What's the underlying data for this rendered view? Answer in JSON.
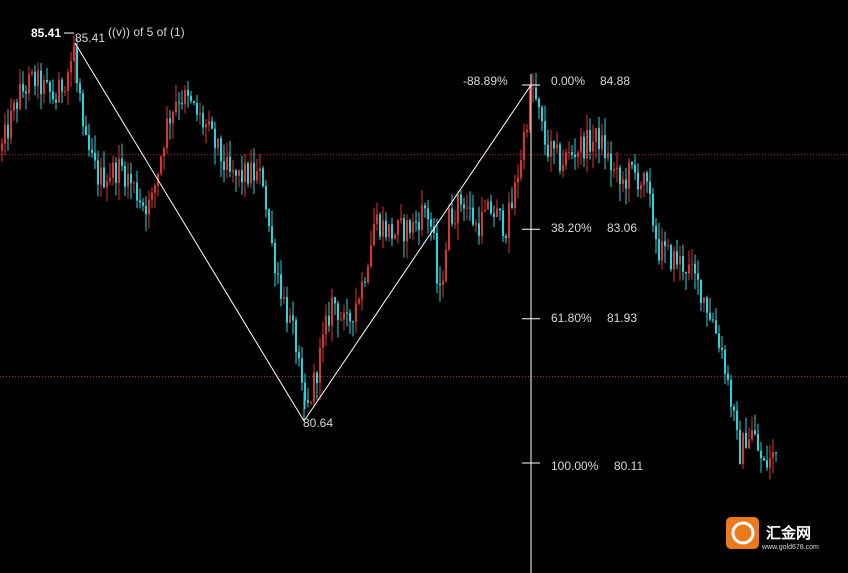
{
  "chart_data": {
    "type": "candlestick",
    "colors": {
      "up": "#e0322c",
      "down": "#22d6e0",
      "background": "#000000",
      "wave_line": "#ffffff",
      "fib_axis": "#ffffff",
      "hline": "#b8312a"
    },
    "horizontal_levels": [
      84.0,
      81.2
    ],
    "wave": {
      "label": "((v)) of 5 of (1)",
      "points": [
        {
          "x": 75,
          "price": 85.41,
          "label": "85.41"
        },
        {
          "x": 304,
          "price": 80.64,
          "label": "80.64"
        },
        {
          "x": 531,
          "price": 84.88,
          "label": ""
        }
      ],
      "high_marker": "85.41"
    },
    "fibonacci": {
      "top_label": "-88.89%",
      "levels": [
        {
          "pct": "0.00%",
          "price": "84.88",
          "value": 84.88
        },
        {
          "pct": "38.20%",
          "price": "83.06",
          "value": 83.06
        },
        {
          "pct": "61.80%",
          "price": "81.93",
          "value": 81.93
        },
        {
          "pct": "100.00%",
          "price": "80.11",
          "value": 80.11
        }
      ]
    },
    "anchors": [
      [
        0,
        84.05
      ],
      [
        18,
        84.75
      ],
      [
        32,
        84.95
      ],
      [
        55,
        84.7
      ],
      [
        68,
        85.1
      ],
      [
        75,
        85.41
      ],
      [
        82,
        84.2
      ],
      [
        98,
        83.7
      ],
      [
        120,
        83.85
      ],
      [
        142,
        83.4
      ],
      [
        150,
        83.35
      ],
      [
        165,
        84.35
      ],
      [
        176,
        84.75
      ],
      [
        185,
        84.7
      ],
      [
        205,
        84.35
      ],
      [
        230,
        83.7
      ],
      [
        250,
        83.75
      ],
      [
        262,
        83.7
      ],
      [
        270,
        82.9
      ],
      [
        282,
        82.2
      ],
      [
        295,
        81.6
      ],
      [
        304,
        80.64
      ],
      [
        318,
        81.4
      ],
      [
        332,
        82.2
      ],
      [
        345,
        81.8
      ],
      [
        362,
        82.4
      ],
      [
        374,
        83.2
      ],
      [
        390,
        83.0
      ],
      [
        412,
        83.1
      ],
      [
        425,
        83.35
      ],
      [
        432,
        83.0
      ],
      [
        438,
        82.1
      ],
      [
        448,
        83.2
      ],
      [
        462,
        83.45
      ],
      [
        475,
        83.1
      ],
      [
        490,
        83.3
      ],
      [
        505,
        83.1
      ],
      [
        512,
        83.4
      ],
      [
        520,
        84.0
      ],
      [
        531,
        84.88
      ],
      [
        545,
        84.1
      ],
      [
        560,
        83.9
      ],
      [
        578,
        84.1
      ],
      [
        598,
        84.2
      ],
      [
        612,
        83.8
      ],
      [
        620,
        83.6
      ],
      [
        630,
        83.8
      ],
      [
        645,
        83.6
      ],
      [
        658,
        82.8
      ],
      [
        670,
        82.7
      ],
      [
        685,
        82.6
      ],
      [
        700,
        82.3
      ],
      [
        712,
        81.9
      ],
      [
        722,
        81.5
      ],
      [
        730,
        80.9
      ],
      [
        738,
        80.2
      ],
      [
        745,
        80.45
      ],
      [
        752,
        80.5
      ],
      [
        762,
        80.05
      ],
      [
        776,
        80.25
      ]
    ]
  },
  "watermark": {
    "logo_text": "汇金网",
    "url": "www.gold678.com"
  }
}
